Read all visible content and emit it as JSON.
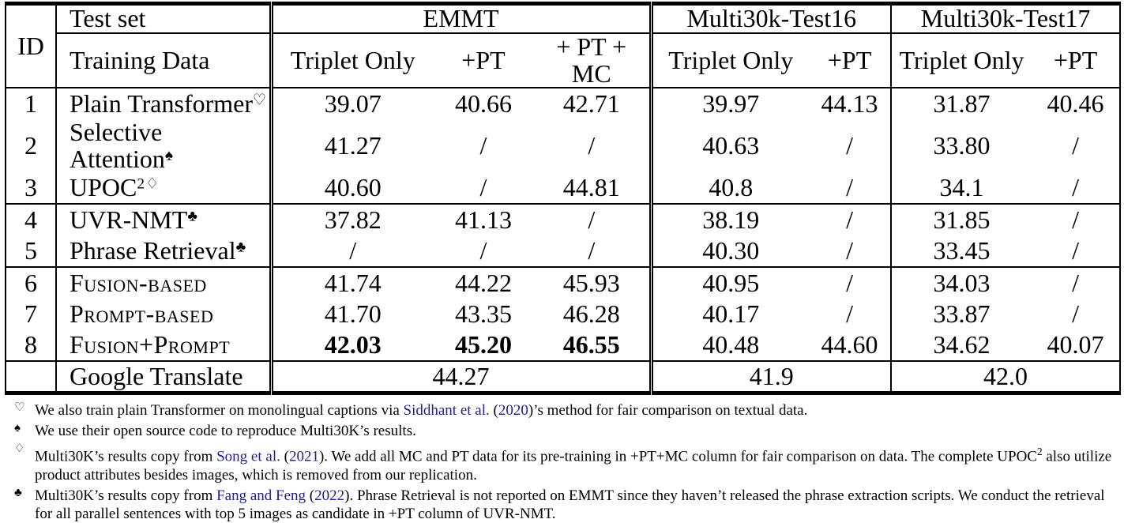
{
  "colors": {
    "citation": "#1e1e8c",
    "text": "#000000",
    "background": "#ffffff"
  },
  "table": {
    "id_header": "ID",
    "test_set_header": "Test set",
    "training_data_header": "Training Data",
    "groups": [
      {
        "label": "EMMT",
        "columns": [
          "Triplet Only",
          "+PT",
          "+ PT + MC"
        ]
      },
      {
        "label": "Multi30k-Test16",
        "columns": [
          "Triplet Only",
          "+PT"
        ]
      },
      {
        "label": "Multi30k-Test17",
        "columns": [
          "Triplet Only",
          "+PT"
        ]
      }
    ],
    "rows": [
      {
        "id": "1",
        "method": "Plain Transformer",
        "sup": "♡",
        "values": [
          "39.07",
          "40.66",
          "42.71",
          "39.97",
          "44.13",
          "31.87",
          "40.46"
        ]
      },
      {
        "id": "2",
        "method": "Selective Attention",
        "sup": "♠",
        "values": [
          "41.27",
          "/",
          "/",
          "40.63",
          "/",
          "33.80",
          "/"
        ]
      },
      {
        "id": "3",
        "method": "UPOC",
        "sup": "2♢",
        "values": [
          "40.60",
          "/",
          "44.81",
          "40.8",
          "/",
          "34.1",
          "/"
        ]
      },
      {
        "id": "4",
        "method": "UVR-NMT",
        "sup": "♣",
        "values": [
          "37.82",
          "41.13",
          "/",
          "38.19",
          "/",
          "31.85",
          "/"
        ]
      },
      {
        "id": "5",
        "method": "Phrase Retrieval",
        "sup": "♣",
        "values": [
          "/",
          "/",
          "/",
          "40.30",
          "/",
          "33.45",
          "/"
        ]
      },
      {
        "id": "6",
        "method": "Fusion-based",
        "sup": "",
        "values": [
          "41.74",
          "44.22",
          "45.93",
          "40.95",
          "/",
          "34.03",
          "/"
        ]
      },
      {
        "id": "7",
        "method": "Prompt-based",
        "sup": "",
        "values": [
          "41.70",
          "43.35",
          "46.28",
          "40.17",
          "/",
          "33.87",
          "/"
        ]
      },
      {
        "id": "8",
        "method": "Fusion+Prompt",
        "sup": "",
        "values": [
          "42.03",
          "45.20",
          "46.55",
          "40.48",
          "44.60",
          "34.62",
          "40.07"
        ]
      }
    ],
    "summary_row": {
      "method": "Google Translate",
      "emmt": "44.27",
      "multi30k_test16": "41.9",
      "multi30k_test17": "42.0"
    }
  },
  "footnotes": [
    {
      "symbol": "♡",
      "segments": [
        {
          "t": "We also train plain Transformer on monolingual captions via "
        },
        {
          "t": "Siddhant et al.",
          "cite": true
        },
        {
          "t": " ("
        },
        {
          "t": "2020",
          "cite": true
        },
        {
          "t": ")’s method for fair comparison on textual data."
        }
      ]
    },
    {
      "symbol": "♠",
      "segments": [
        {
          "t": "We use their open source code to reproduce Multi30K’s results."
        }
      ]
    },
    {
      "symbol": "♢",
      "segments": [
        {
          "t": "Multi30K’s results copy from "
        },
        {
          "t": "Song et al.",
          "cite": true
        },
        {
          "t": " ("
        },
        {
          "t": "2021",
          "cite": true
        },
        {
          "t": "). We add all MC and PT data for its pre-training in +PT+MC column for fair comparison on data. The complete UPOC"
        },
        {
          "t": "2",
          "sup": true
        },
        {
          "t": " also utilize product attributes besides images, which is removed from our replication."
        }
      ]
    },
    {
      "symbol": "♣",
      "segments": [
        {
          "t": "Multi30K’s results copy from "
        },
        {
          "t": "Fang and Feng",
          "cite": true
        },
        {
          "t": " ("
        },
        {
          "t": "2022",
          "cite": true
        },
        {
          "t": "). Phrase Retrieval is not reported on EMMT since they haven’t released the phrase extraction scripts. We conduct the retrieval for all parallel sentences with top 5 images as candidate in +PT column of UVR-NMT."
        }
      ]
    }
  ]
}
